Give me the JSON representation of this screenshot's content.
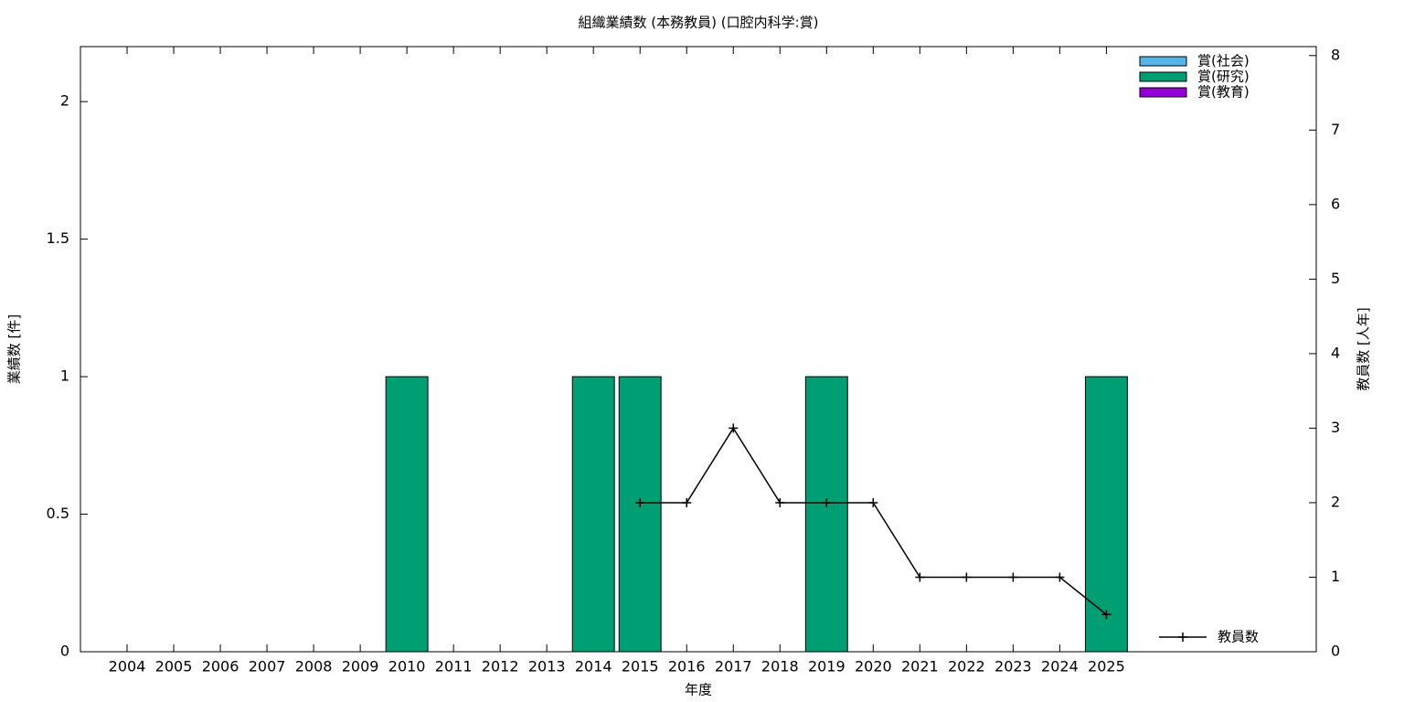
{
  "chart_data": {
    "type": "bar",
    "stacked": true,
    "title": "組織業績数 (本務教員) (口腔内科学:賞)",
    "x_label": "年度",
    "y_label": "業績数 [件]",
    "y2_label": "教員数 [人年]",
    "categories": [
      "2004",
      "2005",
      "2006",
      "2007",
      "2008",
      "2009",
      "2010",
      "2011",
      "2012",
      "2013",
      "2014",
      "2015",
      "2016",
      "2017",
      "2018",
      "2019",
      "2020",
      "2021",
      "2022",
      "2023",
      "2024",
      "2025"
    ],
    "series": [
      {
        "name": "賞(社会)",
        "color": "#56b4e9",
        "values": [
          0,
          0,
          0,
          0,
          0,
          0,
          0,
          0,
          0,
          0,
          0,
          0,
          0,
          0,
          0,
          0,
          0,
          0,
          0,
          0,
          0,
          0
        ]
      },
      {
        "name": "賞(研究)",
        "color": "#009e73",
        "values": [
          0,
          0,
          0,
          0,
          0,
          0,
          1,
          0,
          0,
          0,
          1,
          1,
          0,
          0,
          0,
          1,
          0,
          0,
          0,
          0,
          0,
          1
        ]
      },
      {
        "name": "賞(教育)",
        "color": "#9400d3",
        "values": [
          0,
          0,
          0,
          0,
          0,
          0,
          0,
          0,
          0,
          0,
          0,
          0,
          0,
          0,
          0,
          0,
          0,
          0,
          0,
          0,
          0,
          0
        ]
      },
      {
        "name": "教員数",
        "type": "line",
        "axis": "y2",
        "color": "#000000",
        "values": [
          null,
          null,
          null,
          null,
          null,
          null,
          null,
          null,
          null,
          null,
          null,
          2,
          2,
          3,
          2,
          2,
          2,
          1,
          1,
          1,
          1,
          0.5
        ]
      }
    ],
    "ylim": [
      0,
      2.2
    ],
    "yticks": [
      0,
      0.5,
      1,
      1.5,
      2
    ],
    "y2lim": [
      0,
      8.12
    ],
    "y2ticks": [
      0,
      1,
      2,
      3,
      4,
      5,
      6,
      7,
      8
    ],
    "legend": "top-right"
  }
}
